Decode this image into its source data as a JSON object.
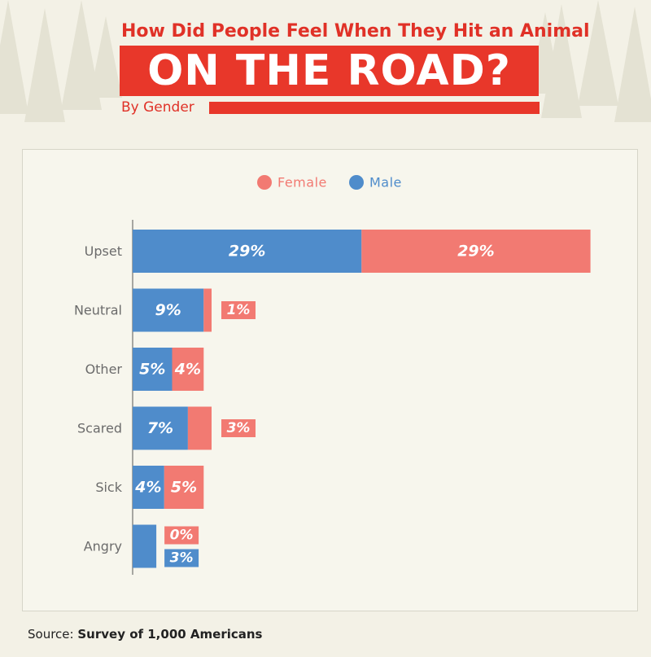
{
  "header": {
    "title_line1": "How Did People Feel When They Hit an Animal",
    "title_line2": "ON THE ROAD?",
    "subtitle": "By Gender"
  },
  "colors": {
    "male": "#4f8ccb",
    "female": "#f27a72",
    "accent": "#e8372a",
    "axis_text": "#6b6b6b"
  },
  "chart_data": {
    "type": "bar",
    "orientation": "horizontal",
    "stacked": true,
    "categories": [
      "Upset",
      "Neutral",
      "Other",
      "Scared",
      "Sick",
      "Angry"
    ],
    "series": [
      {
        "name": "Male",
        "values": [
          29,
          9,
          5,
          7,
          4,
          3
        ],
        "labels": [
          "29%",
          "9%",
          "5%",
          "7%",
          "4%",
          "3%"
        ]
      },
      {
        "name": "Female",
        "values": [
          29,
          1,
          4,
          3,
          5,
          0
        ],
        "labels": [
          "29%",
          "1%",
          "4%",
          "3%",
          "5%",
          "0%"
        ]
      }
    ],
    "legend": {
      "items": [
        "Female",
        "Male"
      ],
      "position": "top"
    },
    "xlim": [
      0,
      58
    ],
    "grid": false
  },
  "footer": {
    "source_label": "Source:",
    "source_text": "Survey of 1,000 Americans"
  }
}
